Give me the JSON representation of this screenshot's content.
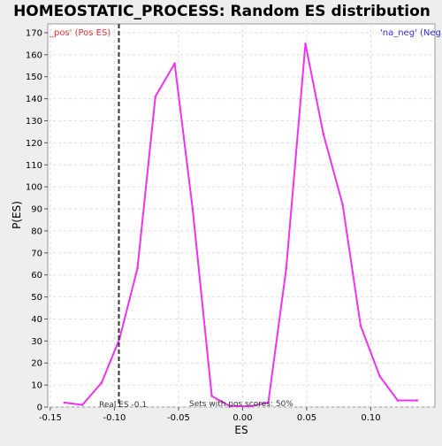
{
  "chart_data": {
    "type": "line",
    "title": "HOMEOSTATIC_PROCESS: Random ES distribution",
    "xlabel": "ES",
    "ylabel": "P(ES)",
    "xlim": [
      -0.152,
      0.15
    ],
    "ylim": [
      0,
      174
    ],
    "x_ticks": [
      -0.15,
      -0.1,
      -0.05,
      0.0,
      0.05,
      0.1
    ],
    "x_tick_labels": [
      "-0.15",
      "-0.10",
      "-0.05",
      "0.00",
      "0.05",
      "0.10"
    ],
    "y_ticks": [
      0,
      10,
      20,
      30,
      40,
      50,
      60,
      70,
      80,
      90,
      100,
      110,
      120,
      130,
      140,
      150,
      160,
      170
    ],
    "y_tick_labels": [
      "0",
      "10",
      "20",
      "30",
      "40",
      "50",
      "60",
      "70",
      "80",
      "90",
      "100",
      "110",
      "120",
      "130",
      "140",
      "150",
      "160",
      "170"
    ],
    "grid": true,
    "series": [
      {
        "color": "#ee33ee",
        "x": [
          -0.139,
          -0.125,
          -0.11,
          -0.096,
          -0.082,
          -0.068,
          -0.053,
          -0.039,
          -0.024,
          -0.01,
          0.005,
          0.02,
          0.034,
          0.049,
          0.063,
          0.078,
          0.092,
          0.107,
          0.121,
          0.136
        ],
        "y": [
          2,
          1,
          11,
          31,
          63,
          141,
          156,
          90,
          5,
          0.5,
          0.3,
          2,
          63,
          165,
          124,
          92,
          37,
          14,
          3,
          3
        ]
      }
    ],
    "real_es": -0.0965,
    "real_es_label": "Real ES -0.1",
    "pos_scores_label": "Sets with pos scores: 50%",
    "legend_left": "_pos' (Pos ES)",
    "legend_right": "'na_neg' (Neg",
    "colors": {
      "line": "#ee33ee",
      "legend_left": "#e03030",
      "legend_right": "#3030d0",
      "grid": "#dddddd",
      "plot_bg": "#ffffff",
      "page_bg": "#eeeeee"
    }
  }
}
